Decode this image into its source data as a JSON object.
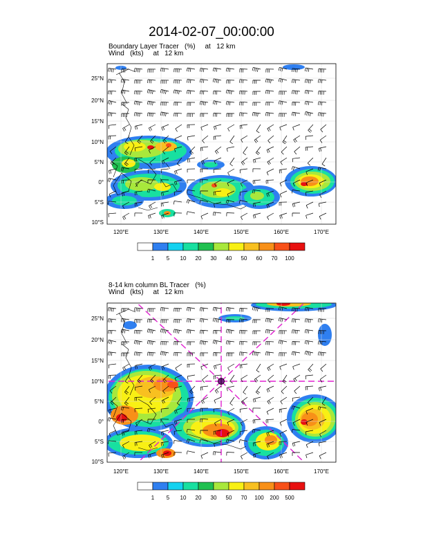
{
  "page_title": "2014-02-07_00:00:00",
  "colors": {
    "palette_top": [
      "#ffffff",
      "#2f7ff0",
      "#14d2f0",
      "#18e0a0",
      "#20c050",
      "#a8e83c",
      "#f8f014",
      "#f8c020",
      "#f89018",
      "#f85018",
      "#e81010"
    ],
    "palette_bottom": [
      "#ffffff",
      "#2f7ff0",
      "#14d2f0",
      "#18e0a0",
      "#20c050",
      "#a8e83c",
      "#f8f014",
      "#f8c020",
      "#f89018",
      "#f85018",
      "#e81010"
    ],
    "guide_lines": "#e020d0",
    "coast": "#000000"
  },
  "axes": {
    "lat_ticks": [
      "25°N",
      "20°N",
      "15°N",
      "10°N",
      "5°N",
      "0°",
      "5°S",
      "10°S"
    ],
    "lon_ticks": [
      "120°E",
      "130°E",
      "140°E",
      "150°E",
      "160°E",
      "170°E"
    ]
  },
  "panels": [
    {
      "title_line1": "Boundary Layer Tracer   (%)     at   12 km",
      "title_line2": "Wind   (kts)     at   12 km",
      "colorbar_labels": [
        "1",
        "5",
        "10",
        "20",
        "30",
        "40",
        "50",
        "60",
        "70",
        "100"
      ]
    },
    {
      "title_line1": "8-14 km column BL Tracer   (%)",
      "title_line2": "Wind   (kts)     at   12 km",
      "colorbar_labels": [
        "1",
        "5",
        "10",
        "20",
        "30",
        "50",
        "70",
        "100",
        "200",
        "500"
      ]
    }
  ]
}
